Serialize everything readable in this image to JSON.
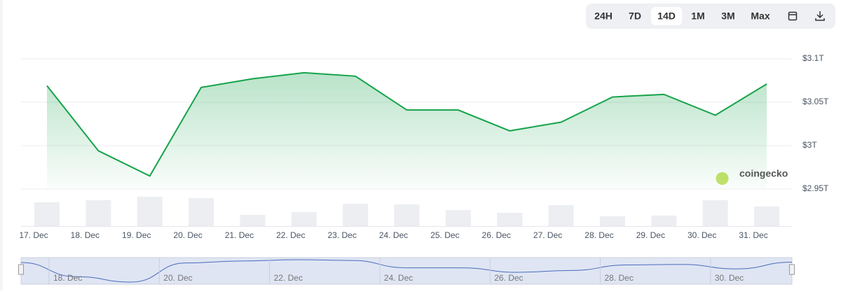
{
  "toolbar": {
    "buttons": [
      "24H",
      "7D",
      "14D",
      "1M",
      "3M",
      "Max"
    ],
    "active_index": 2
  },
  "chart_data": {
    "type": "line",
    "categories": [
      "17. Dec",
      "18. Dec",
      "19. Dec",
      "20. Dec",
      "21. Dec",
      "22. Dec",
      "23. Dec",
      "24. Dec",
      "25. Dec",
      "26. Dec",
      "27. Dec",
      "28. Dec",
      "29. Dec",
      "30. Dec",
      "31. Dec"
    ],
    "values": [
      3.069,
      2.994,
      2.965,
      3.067,
      3.077,
      3.084,
      3.08,
      3.041,
      3.041,
      3.017,
      3.027,
      3.056,
      3.059,
      3.035,
      3.071
    ],
    "color": "#16a34a",
    "ylim": [
      2.95,
      3.1
    ],
    "yticks": [
      {
        "value": 2.95,
        "label": "$2.95T"
      },
      {
        "value": 3,
        "label": "$3T"
      },
      {
        "value": 3.05,
        "label": "$3.05T"
      },
      {
        "value": 3.1,
        "label": "$3.1T"
      }
    ],
    "grid": true,
    "volume": {
      "values": [
        34,
        37,
        42,
        40,
        16,
        20,
        32,
        31,
        23,
        19,
        30,
        14,
        15,
        37,
        28
      ],
      "color": "#eceef2"
    },
    "watermark": "coingecko",
    "navigator_labels": [
      "18. Dec",
      "20. Dec",
      "22. Dec",
      "24. Dec",
      "26. Dec",
      "28. Dec",
      "30. Dec"
    ]
  }
}
